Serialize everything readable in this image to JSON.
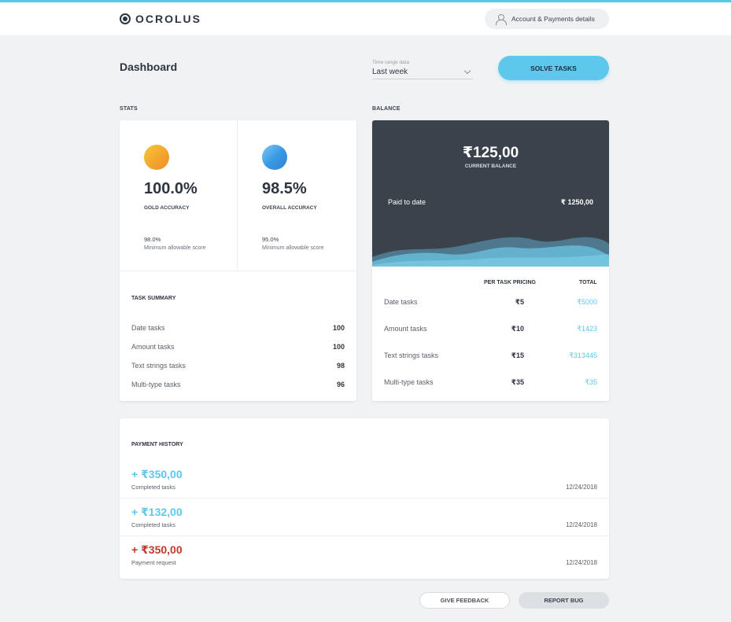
{
  "brand": {
    "name": "OCROLUS"
  },
  "header": {
    "account_label": "Account & Payments details"
  },
  "page": {
    "title": "Dashboard"
  },
  "time_range": {
    "label": "Time range data",
    "value": "Last week"
  },
  "actions": {
    "solve_label": "SOLVE TASKS"
  },
  "stats": {
    "section_label": "STATS",
    "gold": {
      "value": "100.0%",
      "label": "GOLD ACCURACY",
      "min_value": "98.0%",
      "min_label": "Minimum allowable score"
    },
    "overall": {
      "value": "98.5%",
      "label": "OVERALL ACCURACY",
      "min_value": "95.0%",
      "min_label": "Minimum allowable score"
    }
  },
  "task_summary": {
    "title": "TASK SUMMARY",
    "rows": [
      {
        "name": "Date tasks",
        "value": "100"
      },
      {
        "name": "Amount tasks",
        "value": "100"
      },
      {
        "name": "Text strings tasks",
        "value": "98"
      },
      {
        "name": "Multi-type tasks",
        "value": "96"
      }
    ]
  },
  "balance": {
    "section_label": "BALANCE",
    "current": "₹125,00",
    "current_label": "CURRENT BALANCE",
    "paid_label": "Paid to date",
    "paid_value": "₹ 1250,00",
    "pricing_header": "PER TASK PRICING",
    "total_header": "TOTAL",
    "rows": [
      {
        "name": "Date tasks",
        "price": "₹5",
        "total": "₹5000"
      },
      {
        "name": "Amount tasks",
        "price": "₹10",
        "total": "₹1423"
      },
      {
        "name": "Text strings tasks",
        "price": "₹15",
        "total": "₹313445"
      },
      {
        "name": "Multi-type tasks",
        "price": "₹35",
        "total": "₹35"
      }
    ]
  },
  "payment_history": {
    "title": "PAYMENT HISTORY",
    "items": [
      {
        "amount": "+ ₹350,00",
        "desc": "Completed tasks",
        "date": "12/24/2018",
        "kind": "credit"
      },
      {
        "amount": "+ ₹132,00",
        "desc": "Completed tasks",
        "date": "12/24/2018",
        "kind": "credit"
      },
      {
        "amount": "+ ₹350,00",
        "desc": "Payment request",
        "date": "12/24/2018",
        "kind": "request"
      }
    ]
  },
  "footer": {
    "feedback_label": "GIVE FEEDBACK",
    "bug_label": "REPORT BUG"
  },
  "colors": {
    "accent": "#5dc8ec",
    "dark_panel": "#3a424b",
    "request": "#c0392b",
    "gold": "#f3a52c",
    "blue": "#3b9ae4"
  }
}
